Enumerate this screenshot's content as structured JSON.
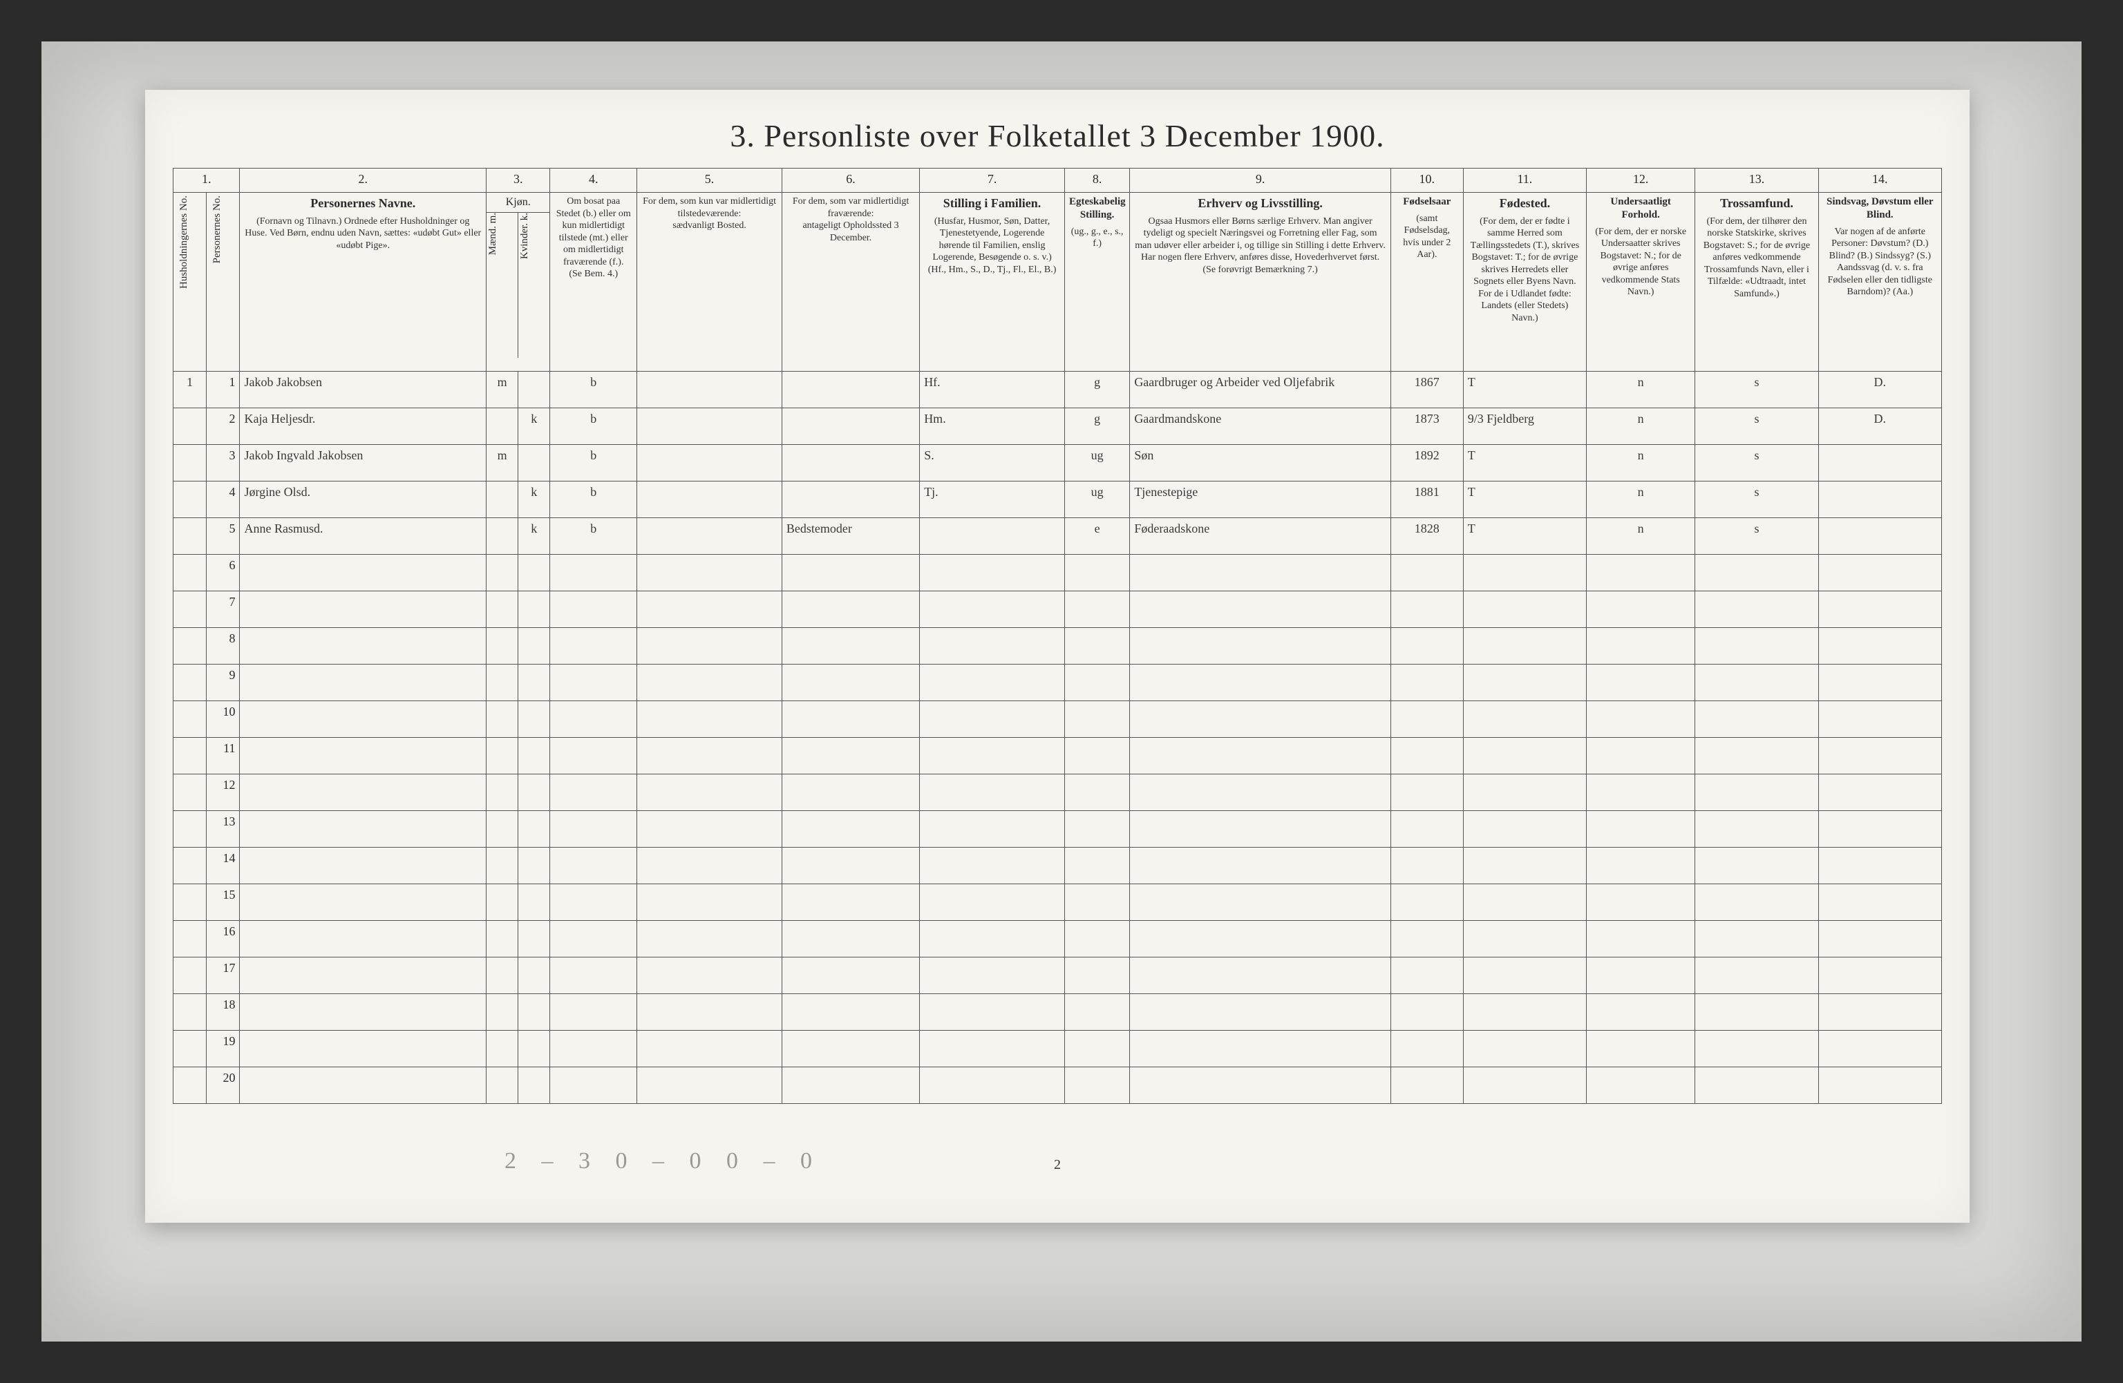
{
  "title": "3.  Personliste over Folketallet 3 December 1900.",
  "page_number": "2",
  "footer_scribble": "2 – 3   0 – 0   0 – 0",
  "household_label": "1",
  "col_numbers": [
    "1.",
    "2.",
    "3.",
    "4.",
    "5.",
    "6.",
    "7.",
    "8.",
    "9.",
    "10.",
    "11.",
    "12.",
    "13.",
    "14."
  ],
  "headers": {
    "c1a": "Husholdningernes No.",
    "c1b": "Personernes No.",
    "c2_main": "Personernes Navne.",
    "c2_sub": "(Fornavn og Tilnavn.) Ordnede efter Husholdninger og Huse. Ved Børn, endnu uden Navn, sættes: «udøbt Gut» eller «udøbt Pige».",
    "c3_main": "Kjøn.",
    "c3_m": "Mænd. m.",
    "c3_k": "Kvinder. k.",
    "c4_main": "Om bosat paa Stedet (b.) eller om kun midlertidigt tilstede (mt.) eller om midlertidigt fraværende (f.).",
    "c4_sub": "(Se Bem. 4.)",
    "c5_main": "For dem, som kun var midlertidigt tilstedeværende:",
    "c5_sub": "sædvanligt Bosted.",
    "c6_main": "For dem, som var midlertidigt fraværende:",
    "c6_sub": "antageligt Opholdssted 3 December.",
    "c7_main": "Stilling i Familien.",
    "c7_sub": "(Husfar, Husmor, Søn, Datter, Tjenestetyende, Logerende hørende til Familien, enslig Logerende, Besøgende o. s. v.) (Hf., Hm., S., D., Tj., Fl., El., B.)",
    "c8_main": "Egteskabelig Stilling.",
    "c8_sub": "(ug., g., e., s., f.)",
    "c9_main": "Erhverv og Livsstilling.",
    "c9_sub": "Ogsaa Husmors eller Børns særlige Erhverv. Man angiver tydeligt og specielt Næringsvei og Forretning eller Fag, som man udøver eller arbeider i, og tillige sin Stilling i dette Erhverv. Har nogen flere Erhverv, anføres disse, Hovederhvervet først. (Se forøvrigt Bemærkning 7.)",
    "c10_main": "Fødselsaar",
    "c10_sub": "(samt Fødselsdag, hvis under 2 Aar).",
    "c11_main": "Fødested.",
    "c11_sub": "(For dem, der er fødte i samme Herred som Tællingsstedets (T.), skrives Bogstavet: T.; for de øvrige skrives Herredets eller Sognets eller Byens Navn. For de i Udlandet fødte: Landets (eller Stedets) Navn.)",
    "c12_main": "Undersaatligt Forhold.",
    "c12_sub": "(For dem, der er norske Undersaatter skrives Bogstavet: N.; for de øvrige anføres vedkommende Stats Navn.)",
    "c13_main": "Trossamfund.",
    "c13_sub": "(For dem, der tilhører den norske Statskirke, skrives Bogstavet: S.; for de øvrige anføres vedkommende Trossamfunds Navn, eller i Tilfælde: «Udtraadt, intet Samfund».)",
    "c14_main": "Sindsvag, Døvstum eller Blind.",
    "c14_sub": "Var nogen af de anførte Personer: Døvstum? (D.) Blind? (B.) Sindssyg? (S.) Aandssvag (d. v. s. fra Fødselen eller den tidligste Barndom)? (Aa.)"
  },
  "rows": [
    {
      "no": "1",
      "name": "Jakob Jakobsen",
      "sex": "m",
      "res": "b",
      "mt": "",
      "fr": "",
      "fam": "Hf.",
      "civ": "g",
      "occ": "Gaardbruger og Arbeider ved Oljefabrik",
      "year": "1867",
      "birthpl": "T",
      "nat": "n",
      "rel": "s",
      "dis": "D."
    },
    {
      "no": "2",
      "name": "Kaja Heljesdr.",
      "sex": "k",
      "res": "b",
      "mt": "",
      "fr": "",
      "fam": "Hm.",
      "civ": "g",
      "occ": "Gaardmandskone",
      "year": "1873",
      "birthpl": "9/3 Fjeldberg",
      "nat": "n",
      "rel": "s",
      "dis": "D."
    },
    {
      "no": "3",
      "name": "Jakob Ingvald Jakobsen",
      "sex": "m",
      "res": "b",
      "mt": "",
      "fr": "",
      "fam": "S.",
      "civ": "ug",
      "occ": "Søn",
      "year": "1892",
      "birthpl": "T",
      "nat": "n",
      "rel": "s",
      "dis": ""
    },
    {
      "no": "4",
      "name": "Jørgine Olsd.",
      "sex": "k",
      "res": "b",
      "mt": "",
      "fr": "",
      "fam": "Tj.",
      "civ": "ug",
      "occ": "Tjenestepige",
      "year": "1881",
      "birthpl": "T",
      "nat": "n",
      "rel": "s",
      "dis": ""
    },
    {
      "no": "5",
      "name": "Anne Rasmusd.",
      "sex": "k",
      "res": "b",
      "mt": "",
      "fr": "Bedstemoder",
      "fam": "",
      "civ": "e",
      "occ": "Føderaadskone",
      "year": "1828",
      "birthpl": "T",
      "nat": "n",
      "rel": "s",
      "dis": ""
    }
  ],
  "blank_rows": [
    "6",
    "7",
    "8",
    "9",
    "10",
    "11",
    "12",
    "13",
    "14",
    "15",
    "16",
    "17",
    "18",
    "19",
    "20"
  ],
  "colors": {
    "paper": "#f6f4ee",
    "scan_bg": "#d8d8d6",
    "line": "#555555",
    "ink": "#2b2b2b",
    "handwriting": "#3a3a38",
    "faint": "#9a9a92"
  }
}
